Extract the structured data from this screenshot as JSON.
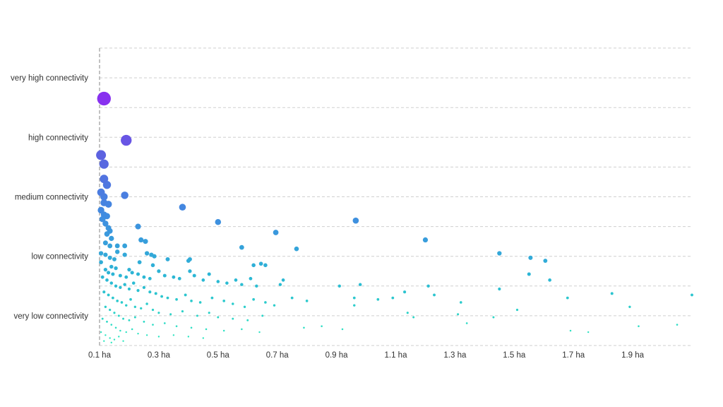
{
  "chart_data": {
    "type": "scatter",
    "title": "",
    "xlabel": "",
    "ylabel": "",
    "xlim": [
      0.1,
      2.1
    ],
    "ylim": [
      0,
      10
    ],
    "x_ticks": [
      {
        "value": 0.1,
        "label": "0.1 ha"
      },
      {
        "value": 0.3,
        "label": "0.3 ha"
      },
      {
        "value": 0.5,
        "label": "0.5 ha"
      },
      {
        "value": 0.7,
        "label": "0.7 ha"
      },
      {
        "value": 0.9,
        "label": "0.9 ha"
      },
      {
        "value": 1.1,
        "label": "1.1 ha"
      },
      {
        "value": 1.3,
        "label": "1.3 ha"
      },
      {
        "value": 1.5,
        "label": "1.5 ha"
      },
      {
        "value": 1.7,
        "label": "1.7 ha"
      },
      {
        "value": 1.9,
        "label": "1.9 ha"
      }
    ],
    "y_categories": [
      {
        "value": 1,
        "label": "very low connectivity"
      },
      {
        "value": 3,
        "label": "low connectivity"
      },
      {
        "value": 5,
        "label": "medium connectivity"
      },
      {
        "value": 7,
        "label": "high connectivity"
      },
      {
        "value": 9,
        "label": "very high connectivity"
      }
    ],
    "grid": true,
    "color_scale": [
      "#2ee8c0",
      "#2bb8d4",
      "#3f8ee0",
      "#5b63e0",
      "#8a2ef0"
    ],
    "points": [
      [
        0.115,
        8.3
      ],
      [
        0.19,
        6.9
      ],
      [
        0.105,
        6.4
      ],
      [
        0.115,
        6.1
      ],
      [
        0.115,
        5.6
      ],
      [
        0.125,
        5.4
      ],
      [
        0.105,
        5.15
      ],
      [
        0.115,
        5.0
      ],
      [
        0.115,
        4.8
      ],
      [
        0.13,
        4.75
      ],
      [
        0.185,
        5.05
      ],
      [
        0.105,
        4.55
      ],
      [
        0.115,
        4.4
      ],
      [
        0.125,
        4.35
      ],
      [
        0.11,
        4.25
      ],
      [
        0.12,
        4.1
      ],
      [
        0.13,
        3.95
      ],
      [
        0.135,
        3.85
      ],
      [
        0.38,
        4.65
      ],
      [
        0.5,
        4.15
      ],
      [
        0.965,
        4.2
      ],
      [
        0.125,
        3.75
      ],
      [
        0.14,
        3.6
      ],
      [
        0.23,
        4.0
      ],
      [
        0.12,
        3.45
      ],
      [
        0.135,
        3.35
      ],
      [
        0.16,
        3.35
      ],
      [
        0.185,
        3.35
      ],
      [
        0.24,
        3.55
      ],
      [
        0.255,
        3.5
      ],
      [
        0.695,
        3.8
      ],
      [
        0.58,
        3.3
      ],
      [
        0.765,
        3.25
      ],
      [
        1.2,
        3.55
      ],
      [
        1.45,
        3.1
      ],
      [
        1.555,
        2.95
      ],
      [
        1.605,
        2.85
      ],
      [
        0.105,
        3.1
      ],
      [
        0.12,
        3.05
      ],
      [
        0.135,
        2.95
      ],
      [
        0.15,
        2.9
      ],
      [
        0.16,
        3.15
      ],
      [
        0.185,
        3.05
      ],
      [
        0.26,
        3.1
      ],
      [
        0.275,
        3.05
      ],
      [
        0.285,
        3.0
      ],
      [
        0.33,
        2.9
      ],
      [
        0.4,
        2.85
      ],
      [
        0.405,
        2.9
      ],
      [
        0.235,
        2.8
      ],
      [
        0.28,
        2.7
      ],
      [
        0.14,
        2.65
      ],
      [
        0.155,
        2.6
      ],
      [
        0.105,
        2.8
      ],
      [
        0.62,
        2.7
      ],
      [
        0.645,
        2.75
      ],
      [
        0.66,
        2.7
      ],
      [
        1.55,
        2.4
      ],
      [
        1.62,
        2.2
      ],
      [
        0.12,
        2.55
      ],
      [
        0.13,
        2.45
      ],
      [
        0.145,
        2.4
      ],
      [
        0.17,
        2.35
      ],
      [
        0.19,
        2.3
      ],
      [
        0.2,
        2.55
      ],
      [
        0.21,
        2.45
      ],
      [
        0.23,
        2.4
      ],
      [
        0.25,
        2.3
      ],
      [
        0.27,
        2.25
      ],
      [
        0.3,
        2.5
      ],
      [
        0.32,
        2.35
      ],
      [
        0.35,
        2.3
      ],
      [
        0.37,
        2.25
      ],
      [
        0.405,
        2.5
      ],
      [
        0.42,
        2.35
      ],
      [
        0.45,
        2.2
      ],
      [
        0.47,
        2.4
      ],
      [
        0.5,
        2.15
      ],
      [
        0.53,
        2.1
      ],
      [
        0.56,
        2.2
      ],
      [
        0.58,
        2.05
      ],
      [
        0.61,
        2.25
      ],
      [
        0.63,
        2.0
      ],
      [
        0.72,
        2.2
      ],
      [
        0.71,
        2.05
      ],
      [
        0.91,
        2.0
      ],
      [
        0.98,
        2.05
      ],
      [
        1.13,
        1.8
      ],
      [
        1.21,
        2.0
      ],
      [
        1.23,
        1.7
      ],
      [
        1.45,
        1.9
      ],
      [
        1.68,
        1.6
      ],
      [
        1.83,
        1.75
      ],
      [
        2.1,
        1.7
      ],
      [
        0.11,
        2.3
      ],
      [
        0.125,
        2.2
      ],
      [
        0.14,
        2.1
      ],
      [
        0.155,
        2.0
      ],
      [
        0.17,
        1.95
      ],
      [
        0.185,
        2.05
      ],
      [
        0.2,
        1.9
      ],
      [
        0.215,
        2.1
      ],
      [
        0.23,
        1.85
      ],
      [
        0.25,
        1.95
      ],
      [
        0.27,
        1.8
      ],
      [
        0.29,
        1.75
      ],
      [
        0.31,
        1.65
      ],
      [
        0.33,
        1.6
      ],
      [
        0.36,
        1.55
      ],
      [
        0.39,
        1.7
      ],
      [
        0.41,
        1.5
      ],
      [
        0.44,
        1.45
      ],
      [
        0.48,
        1.6
      ],
      [
        0.52,
        1.5
      ],
      [
        0.55,
        1.4
      ],
      [
        0.59,
        1.3
      ],
      [
        0.62,
        1.55
      ],
      [
        0.66,
        1.45
      ],
      [
        0.69,
        1.35
      ],
      [
        0.75,
        1.6
      ],
      [
        0.8,
        1.5
      ],
      [
        0.96,
        1.6
      ],
      [
        0.96,
        1.35
      ],
      [
        1.04,
        1.55
      ],
      [
        1.09,
        1.6
      ],
      [
        1.32,
        1.45
      ],
      [
        1.89,
        1.3
      ],
      [
        0.115,
        1.8
      ],
      [
        0.13,
        1.7
      ],
      [
        0.145,
        1.6
      ],
      [
        0.16,
        1.5
      ],
      [
        0.175,
        1.45
      ],
      [
        0.19,
        1.35
      ],
      [
        0.205,
        1.55
      ],
      [
        0.22,
        1.3
      ],
      [
        0.24,
        1.25
      ],
      [
        0.26,
        1.4
      ],
      [
        0.28,
        1.2
      ],
      [
        0.3,
        1.1
      ],
      [
        0.34,
        1.05
      ],
      [
        0.38,
        1.15
      ],
      [
        0.43,
        1.0
      ],
      [
        0.47,
        1.1
      ],
      [
        0.5,
        0.95
      ],
      [
        0.55,
        0.9
      ],
      [
        0.6,
        0.85
      ],
      [
        0.65,
        1.0
      ],
      [
        1.14,
        1.1
      ],
      [
        1.16,
        0.95
      ],
      [
        1.31,
        1.05
      ],
      [
        1.51,
        1.2
      ],
      [
        1.43,
        0.95
      ],
      [
        0.12,
        1.3
      ],
      [
        0.135,
        1.2
      ],
      [
        0.15,
        1.1
      ],
      [
        0.165,
        1.0
      ],
      [
        0.18,
        0.9
      ],
      [
        0.2,
        0.85
      ],
      [
        0.22,
        0.95
      ],
      [
        0.25,
        0.8
      ],
      [
        0.28,
        0.7
      ],
      [
        0.32,
        0.75
      ],
      [
        0.36,
        0.65
      ],
      [
        0.41,
        0.6
      ],
      [
        0.46,
        0.55
      ],
      [
        0.52,
        0.5
      ],
      [
        0.58,
        0.55
      ],
      [
        0.64,
        0.45
      ],
      [
        0.79,
        0.6
      ],
      [
        0.85,
        0.65
      ],
      [
        0.92,
        0.55
      ],
      [
        1.34,
        0.75
      ],
      [
        1.69,
        0.5
      ],
      [
        1.92,
        0.65
      ],
      [
        2.05,
        0.7
      ],
      [
        0.11,
        0.9
      ],
      [
        0.125,
        0.8
      ],
      [
        0.14,
        0.7
      ],
      [
        0.155,
        0.6
      ],
      [
        0.17,
        0.5
      ],
      [
        0.19,
        0.45
      ],
      [
        0.21,
        0.55
      ],
      [
        0.23,
        0.4
      ],
      [
        0.26,
        0.35
      ],
      [
        0.3,
        0.3
      ],
      [
        0.35,
        0.35
      ],
      [
        0.4,
        0.3
      ],
      [
        0.45,
        0.25
      ],
      [
        0.105,
        0.45
      ],
      [
        0.12,
        0.35
      ],
      [
        0.135,
        0.25
      ],
      [
        0.15,
        0.2
      ],
      [
        0.165,
        0.3
      ],
      [
        0.18,
        0.15
      ],
      [
        1.75,
        0.45
      ],
      [
        0.115,
        0.15
      ],
      [
        0.14,
        0.1
      ]
    ]
  }
}
